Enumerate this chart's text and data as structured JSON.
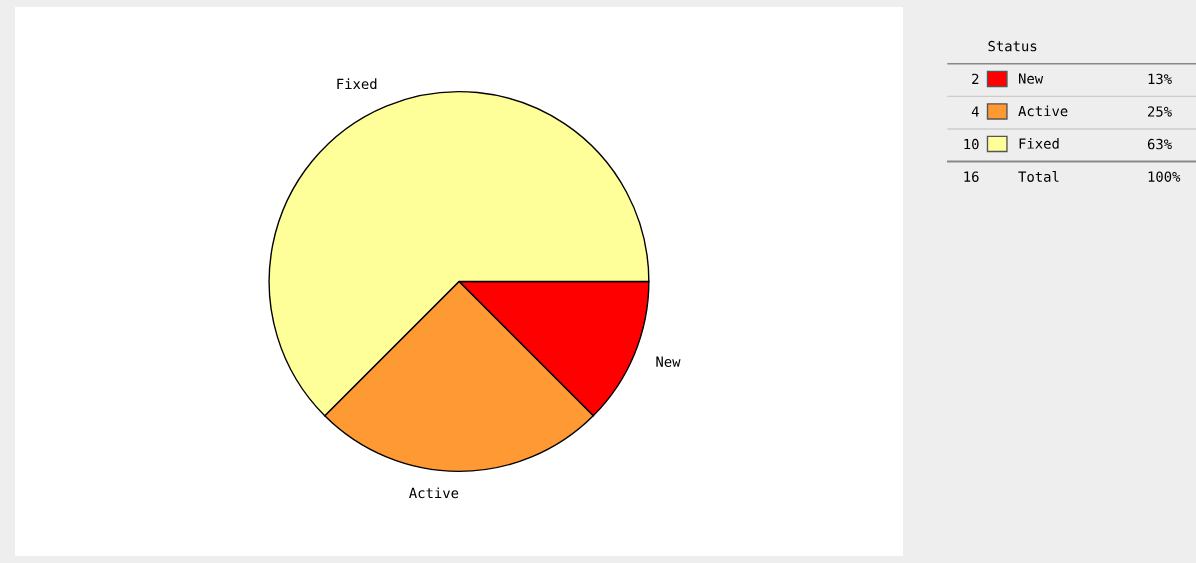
{
  "chart_data": {
    "type": "pie",
    "categories": [
      "New",
      "Active",
      "Fixed"
    ],
    "values": [
      12.5,
      25,
      62.5
    ],
    "colors": [
      "#ff0000",
      "#ff9933",
      "#ffff99"
    ],
    "value_labels": [
      "13%",
      "25%",
      "63%"
    ],
    "legend_title": "Status",
    "legend": "right",
    "totals": [
      "16",
      "100%"
    ],
    "annotations": [
      "2",
      "4",
      "10",
      "Total"
    ]
  }
}
